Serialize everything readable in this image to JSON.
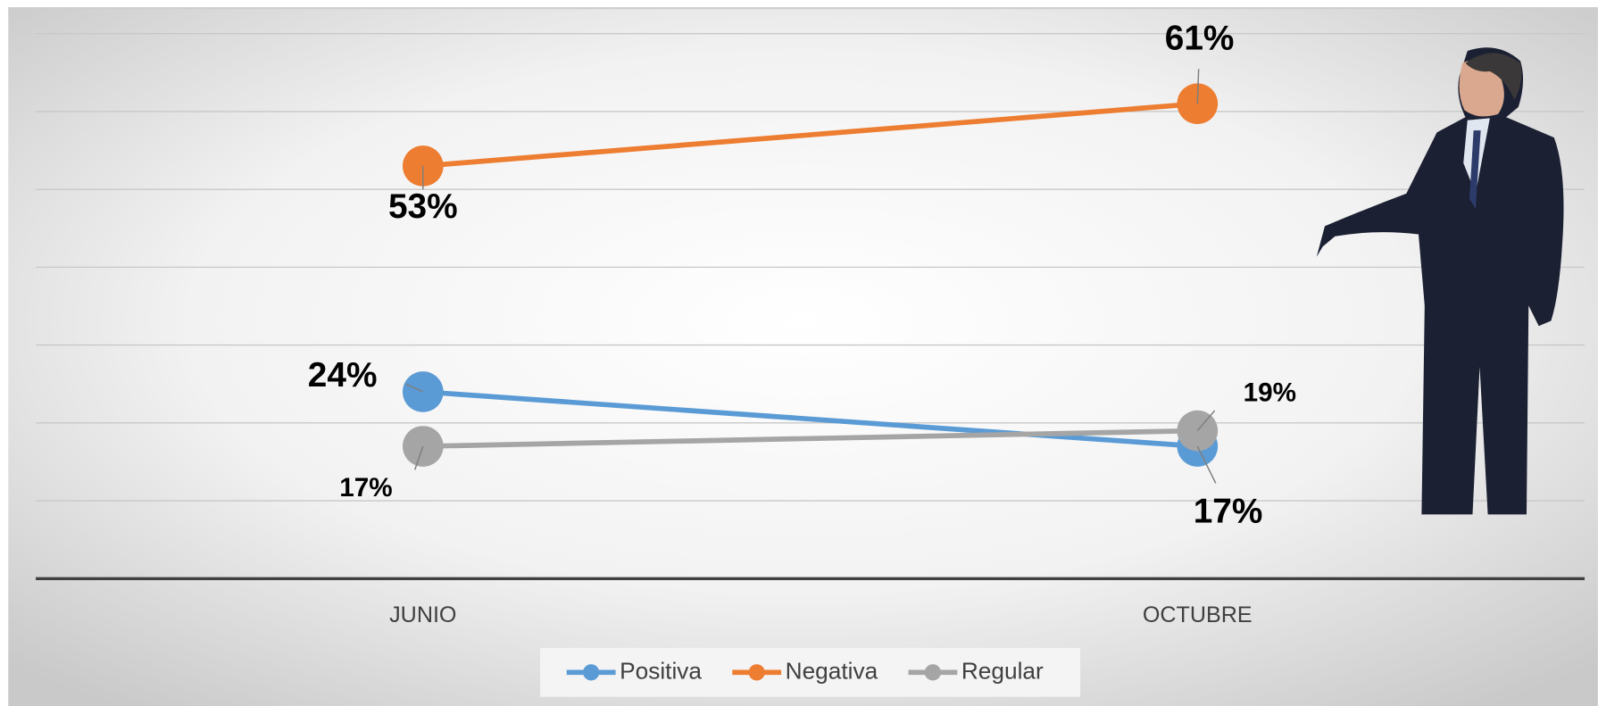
{
  "chart_data": {
    "type": "line",
    "categories": [
      "JUNIO",
      "OCTUBRE"
    ],
    "series": [
      {
        "name": "Positiva",
        "color": "#5b9bd5",
        "values": [
          24,
          17
        ],
        "value_labels": [
          "24%",
          "17%"
        ]
      },
      {
        "name": "Negativa",
        "color": "#ed7d31",
        "values": [
          53,
          61
        ],
        "value_labels": [
          "53%",
          "61%"
        ]
      },
      {
        "name": "Regular",
        "color": "#a5a5a5",
        "values": [
          17,
          19
        ],
        "value_labels": [
          "17%",
          "19%"
        ]
      }
    ],
    "ylim": [
      0,
      70
    ],
    "yticks": [
      0,
      10,
      20,
      30,
      40,
      50,
      60,
      70
    ],
    "grid": true,
    "legend": "bottom"
  }
}
